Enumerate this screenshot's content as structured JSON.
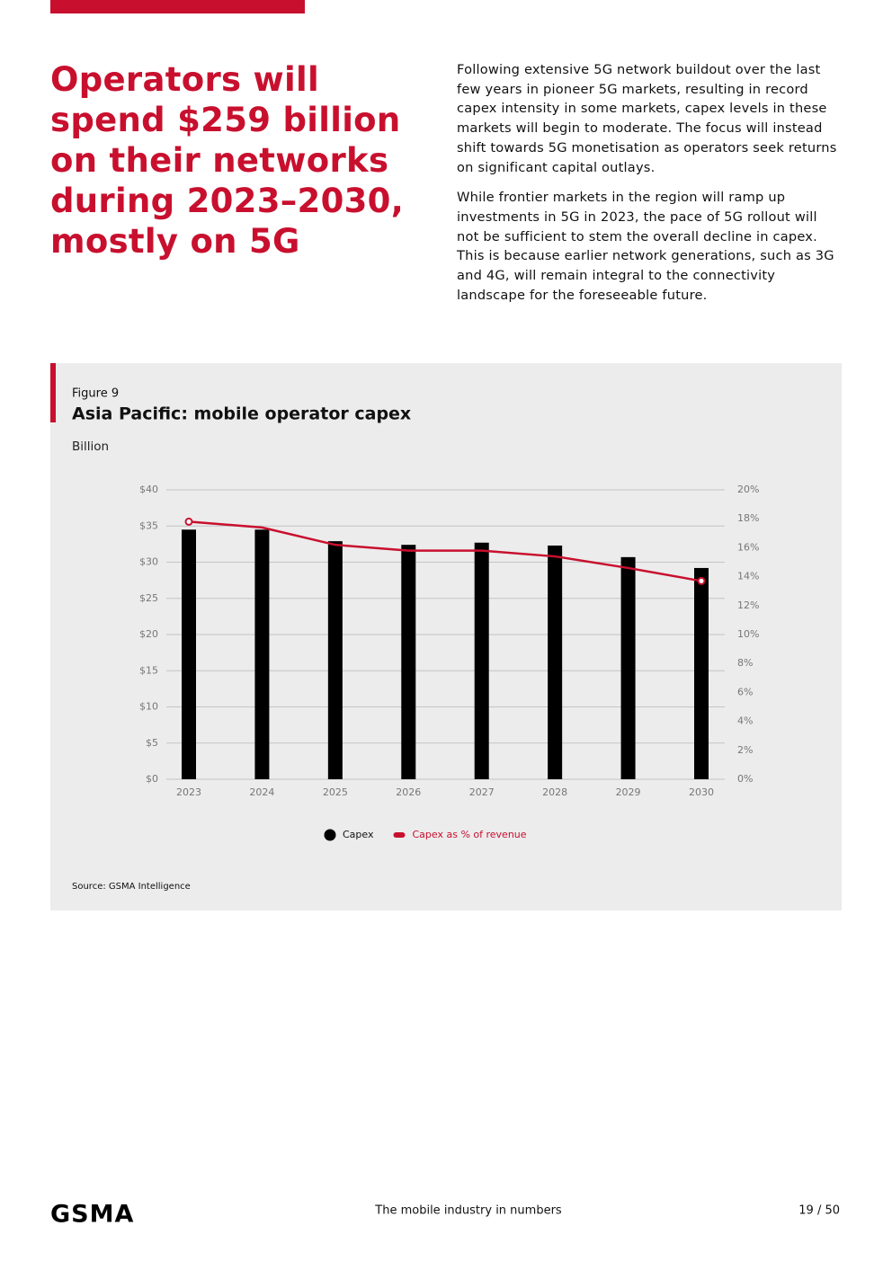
{
  "header": {
    "title": "Operators will spend $259 billion on their networks during 2023–2030, mostly on 5G",
    "paragraphs": [
      "Following extensive 5G network buildout over the last few years in pioneer 5G markets, resulting in record capex intensity in some markets, capex levels in these markets will begin to moderate. The focus will instead shift towards 5G monetisation as operators seek returns on significant capital outlays.",
      "While frontier markets in the region will ramp up investments in 5G in 2023, the pace of 5G rollout will not be sufficient to stem the overall decline in capex. This is because earlier network generations, such as 3G and 4G, will remain integral to the connectivity landscape for the foreseeable future."
    ]
  },
  "chart_data": {
    "type": "bar",
    "figure_label": "Figure 9",
    "title": "Asia Pacific: mobile operator capex",
    "y_axis_label": "Billion",
    "categories": [
      "2023",
      "2024",
      "2025",
      "2026",
      "2027",
      "2028",
      "2029",
      "2030"
    ],
    "series": [
      {
        "name": "Capex",
        "type": "bar",
        "color": "#000000",
        "values": [
          34.5,
          34.5,
          32.9,
          32.4,
          32.7,
          32.3,
          30.7,
          29.2
        ]
      },
      {
        "name": "Capex as % of revenue",
        "type": "line",
        "axis": "y2",
        "color": "#c8102e",
        "values": [
          17.8,
          17.4,
          16.2,
          15.8,
          15.8,
          15.4,
          14.6,
          13.7
        ]
      }
    ],
    "ylim": [
      0,
      40
    ],
    "yticks": [
      {
        "value": 0,
        "label": "$0"
      },
      {
        "value": 5,
        "label": "$5"
      },
      {
        "value": 10,
        "label": "$10"
      },
      {
        "value": 15,
        "label": "$15"
      },
      {
        "value": 20,
        "label": "$20"
      },
      {
        "value": 25,
        "label": "$25"
      },
      {
        "value": 30,
        "label": "$30"
      },
      {
        "value": 35,
        "label": "$35"
      },
      {
        "value": 40,
        "label": "$40"
      }
    ],
    "y2lim": [
      0,
      20
    ],
    "y2ticks": [
      {
        "value": 0,
        "label": "0%"
      },
      {
        "value": 2,
        "label": "2%"
      },
      {
        "value": 4,
        "label": "4%"
      },
      {
        "value": 6,
        "label": "6%"
      },
      {
        "value": 8,
        "label": "8%"
      },
      {
        "value": 10,
        "label": "10%"
      },
      {
        "value": 12,
        "label": "12%"
      },
      {
        "value": 14,
        "label": "14%"
      },
      {
        "value": 16,
        "label": "16%"
      },
      {
        "value": 18,
        "label": "18%"
      },
      {
        "value": 20,
        "label": "20%"
      }
    ],
    "grid": true,
    "source": "Source: GSMA Intelligence"
  },
  "footer": {
    "logo": "GSMA",
    "center": "The mobile industry in numbers",
    "page": "19 / 50"
  }
}
